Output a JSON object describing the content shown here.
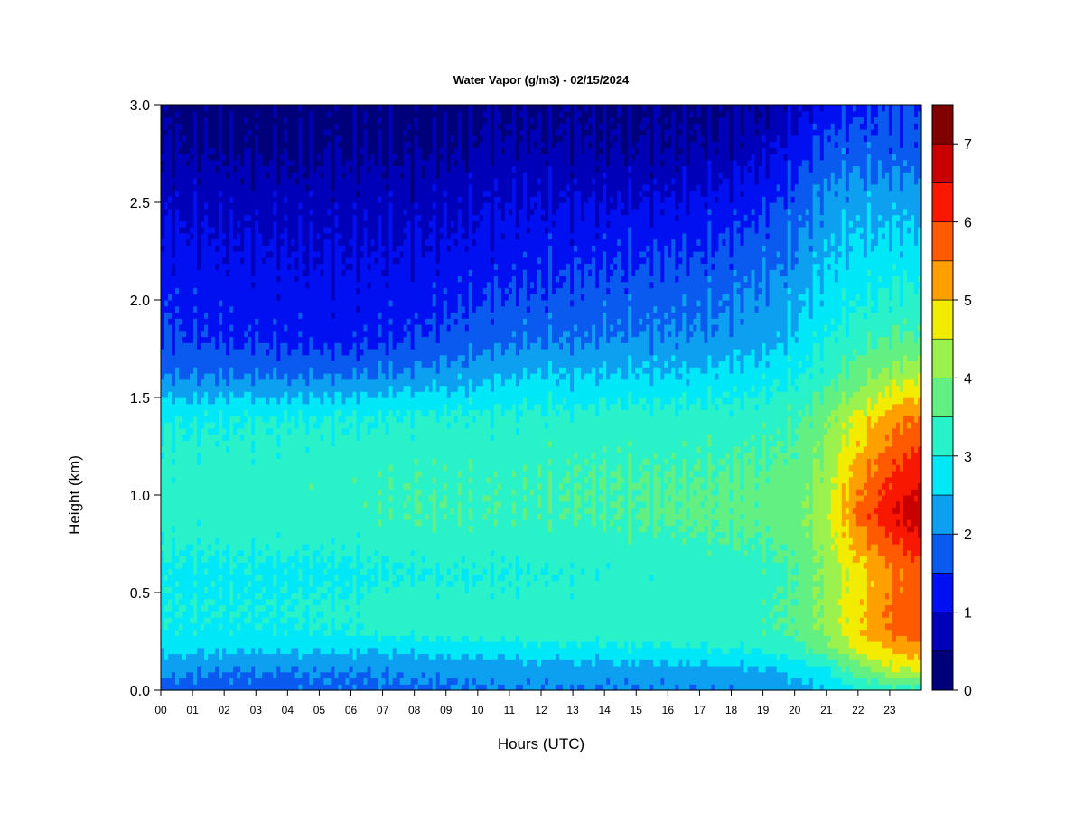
{
  "chart_data": {
    "type": "heatmap",
    "title": "Water Vapor (g/m3) - 02/15/2024",
    "xlabel": "Hours (UTC)",
    "ylabel": "Height (km)",
    "xlim": [
      0,
      24
    ],
    "ylim": [
      0,
      3.0
    ],
    "x_ticks": [
      "00",
      "01",
      "02",
      "03",
      "04",
      "05",
      "06",
      "07",
      "08",
      "09",
      "10",
      "11",
      "12",
      "13",
      "14",
      "15",
      "16",
      "17",
      "18",
      "19",
      "20",
      "21",
      "22",
      "23"
    ],
    "y_ticks": [
      "0.0",
      "0.5",
      "1.0",
      "1.5",
      "2.0",
      "2.5",
      "3.0"
    ],
    "colorbar": {
      "range": [
        0,
        7.5
      ],
      "ticks": [
        "0",
        "1",
        "2",
        "3",
        "4",
        "5",
        "6",
        "7"
      ],
      "levels": [
        0,
        0.5,
        1,
        1.5,
        2,
        2.5,
        3,
        3.5,
        4,
        4.5,
        5,
        5.5,
        6,
        6.5,
        7,
        7.5
      ],
      "colors": [
        "#00007a",
        "#0000b8",
        "#0010f0",
        "#0a5af0",
        "#0ea0f0",
        "#00e8f8",
        "#2af2c8",
        "#62f082",
        "#9cf24c",
        "#f2ec00",
        "#ffa000",
        "#ff5a00",
        "#f81800",
        "#c80000",
        "#800000"
      ]
    },
    "profiles": {
      "hours": [
        0,
        3,
        6,
        8,
        11,
        14,
        17,
        19,
        20,
        21,
        22,
        23,
        24
      ],
      "heights_km": [
        0,
        0.1,
        0.2,
        0.3,
        0.4,
        0.6,
        0.9,
        1.1,
        1.4,
        1.6,
        1.8,
        2.1,
        2.5,
        2.8,
        3.0
      ],
      "values": [
        [
          1.8,
          2.1,
          2.6,
          2.9,
          3.0,
          2.9,
          3.2,
          3.2,
          2.9,
          2.0,
          1.5,
          1.3,
          0.9,
          0.5,
          0.3
        ],
        [
          1.8,
          2.0,
          2.5,
          2.9,
          3.0,
          2.9,
          3.3,
          3.3,
          3.0,
          2.0,
          1.4,
          1.2,
          0.8,
          0.4,
          0.3
        ],
        [
          1.9,
          2.0,
          2.5,
          3.0,
          3.1,
          2.9,
          3.3,
          3.3,
          3.0,
          2.0,
          1.3,
          1.1,
          0.8,
          0.4,
          0.3
        ],
        [
          1.9,
          2.1,
          2.6,
          3.2,
          3.3,
          3.0,
          3.5,
          3.4,
          3.1,
          2.2,
          1.5,
          1.2,
          0.8,
          0.4,
          0.3
        ],
        [
          2.0,
          2.2,
          2.7,
          3.3,
          3.2,
          3.0,
          3.4,
          3.4,
          3.1,
          2.5,
          1.9,
          1.4,
          1.0,
          0.6,
          0.4
        ],
        [
          2.0,
          2.2,
          2.8,
          3.3,
          3.3,
          3.1,
          3.5,
          3.5,
          3.2,
          2.6,
          2.0,
          1.6,
          1.0,
          0.5,
          0.4
        ],
        [
          2.0,
          2.3,
          2.9,
          3.3,
          3.3,
          3.2,
          3.6,
          3.5,
          3.2,
          2.6,
          2.1,
          1.7,
          1.1,
          0.5,
          0.4
        ],
        [
          2.1,
          2.4,
          3.0,
          3.4,
          3.4,
          3.3,
          3.7,
          3.6,
          3.3,
          2.8,
          2.3,
          2.0,
          1.4,
          0.8,
          0.5
        ],
        [
          2.3,
          2.6,
          3.2,
          3.6,
          3.6,
          3.5,
          3.8,
          3.7,
          3.4,
          3.0,
          2.6,
          2.2,
          1.7,
          1.2,
          0.8
        ],
        [
          2.5,
          2.9,
          3.8,
          4.1,
          4.2,
          4.1,
          4.4,
          4.2,
          3.9,
          3.3,
          3.0,
          2.6,
          2.2,
          1.6,
          1.2
        ],
        [
          3.0,
          3.7,
          4.5,
          4.9,
          4.9,
          4.8,
          5.6,
          5.3,
          4.6,
          3.8,
          3.3,
          2.8,
          2.3,
          1.7,
          1.4
        ],
        [
          3.2,
          4.3,
          5.0,
          5.5,
          5.6,
          5.4,
          6.4,
          6.0,
          5.2,
          4.2,
          3.5,
          2.9,
          2.3,
          1.7,
          1.5
        ],
        [
          3.3,
          4.6,
          5.3,
          5.9,
          6.0,
          5.8,
          6.9,
          6.5,
          5.6,
          4.5,
          3.6,
          3.0,
          2.3,
          1.7,
          1.5
        ]
      ]
    }
  }
}
